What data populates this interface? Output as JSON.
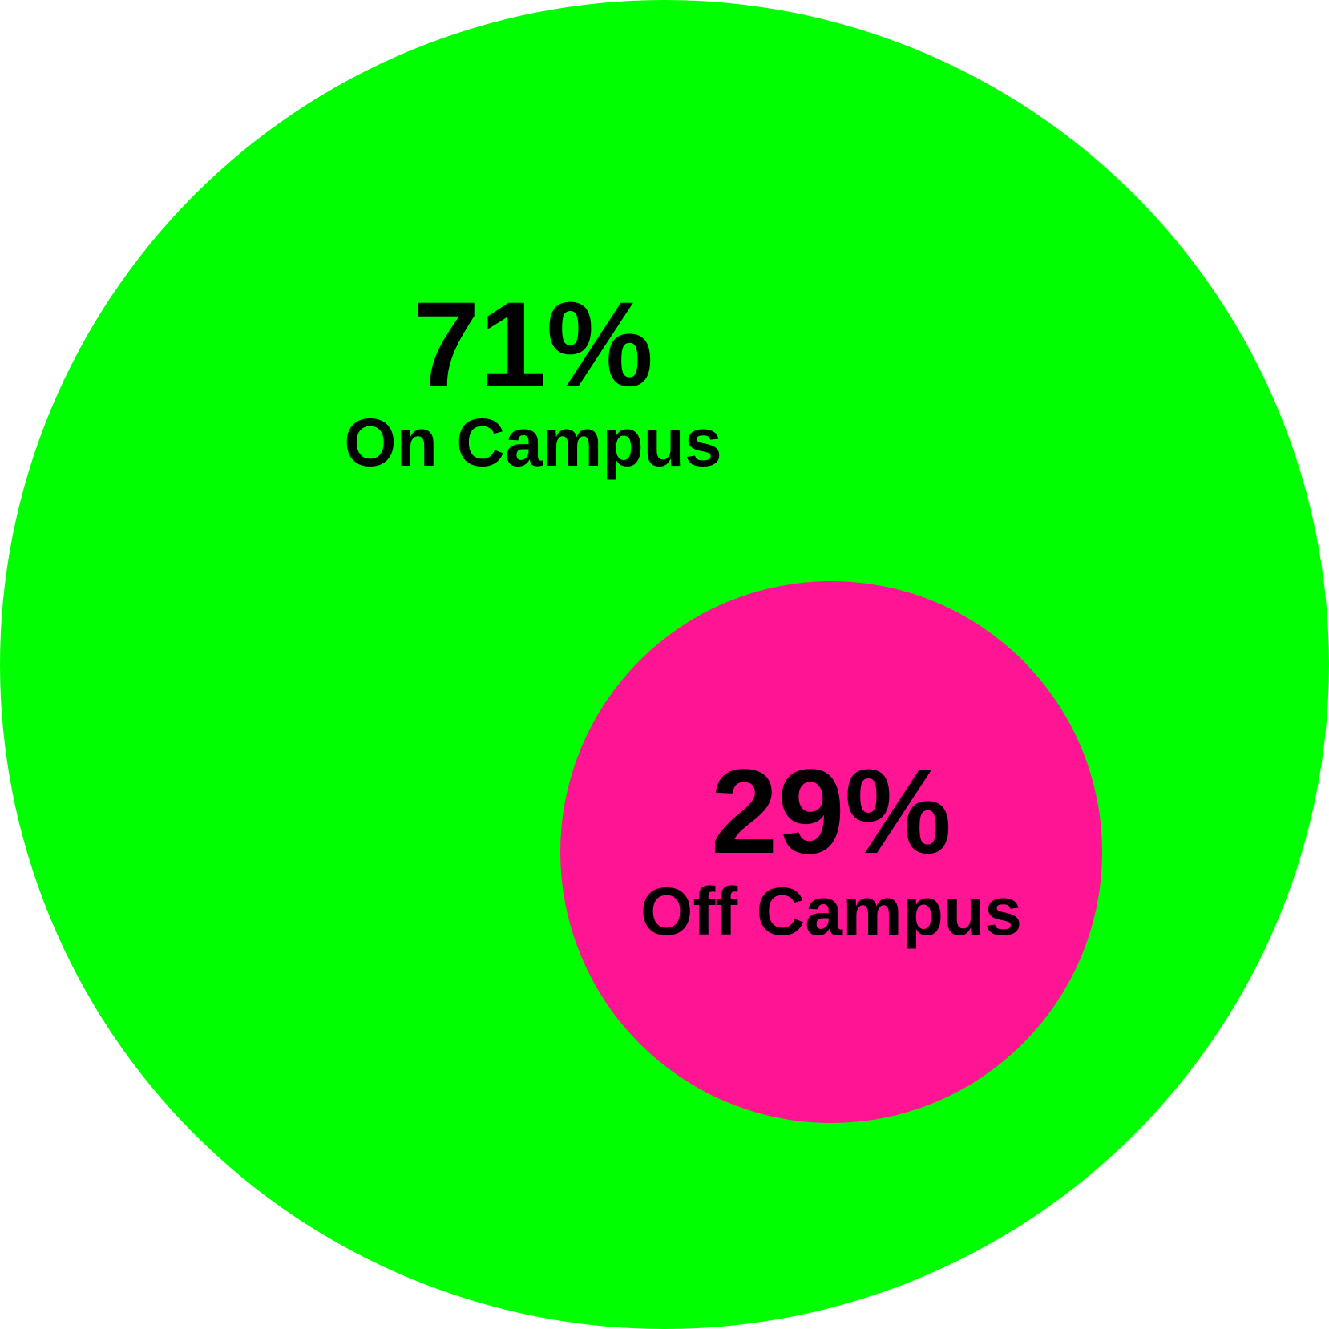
{
  "chart_data": {
    "type": "nested-circles",
    "title": "",
    "series": [
      {
        "name": "On Campus",
        "value": 71,
        "display": "71%",
        "color": "#00ff00"
      },
      {
        "name": "Off Campus",
        "value": 29,
        "display": "29%",
        "color": "#ff1493"
      }
    ]
  }
}
